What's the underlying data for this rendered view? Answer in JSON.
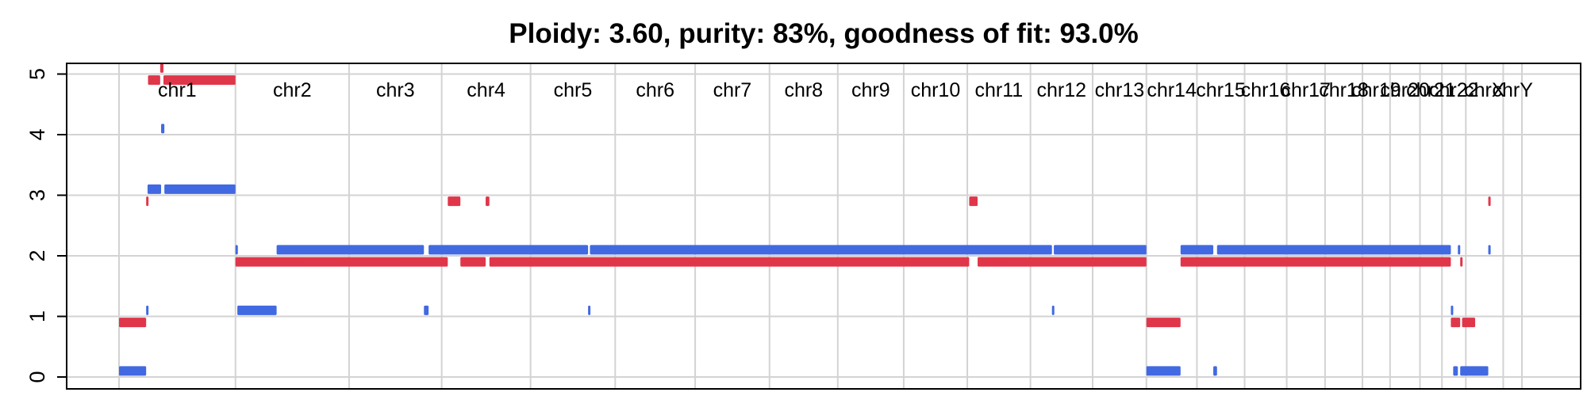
{
  "chart_data": {
    "type": "segment",
    "title": "Ploidy: 3.60, purity: 83%, goodness of fit: 93.0%",
    "xlabel": "",
    "ylabel": "",
    "ylim": [
      -0.2,
      5.1
    ],
    "yticks": [
      0,
      1,
      2,
      3,
      4,
      5
    ],
    "grid": true,
    "legend": "none",
    "colors": {
      "major": "#4169E1",
      "minor": "#E0364A"
    },
    "chromosomes": [
      {
        "name": "chr1",
        "start": 0,
        "end": 249
      },
      {
        "name": "chr2",
        "start": 249,
        "end": 492
      },
      {
        "name": "chr3",
        "start": 492,
        "end": 690
      },
      {
        "name": "chr4",
        "start": 690,
        "end": 880
      },
      {
        "name": "chr5",
        "start": 880,
        "end": 1061
      },
      {
        "name": "chr6",
        "start": 1061,
        "end": 1232
      },
      {
        "name": "chr7",
        "start": 1232,
        "end": 1391
      },
      {
        "name": "chr8",
        "start": 1391,
        "end": 1537
      },
      {
        "name": "chr9",
        "start": 1537,
        "end": 1678
      },
      {
        "name": "chr10",
        "start": 1678,
        "end": 1814
      },
      {
        "name": "chr11",
        "start": 1814,
        "end": 1949
      },
      {
        "name": "chr12",
        "start": 1949,
        "end": 2082
      },
      {
        "name": "chr13",
        "start": 2082,
        "end": 2197
      },
      {
        "name": "chr14",
        "start": 2197,
        "end": 2305
      },
      {
        "name": "chr15",
        "start": 2305,
        "end": 2407
      },
      {
        "name": "chr16",
        "start": 2407,
        "end": 2497
      },
      {
        "name": "chr17",
        "start": 2497,
        "end": 2579
      },
      {
        "name": "chr18",
        "start": 2579,
        "end": 2659
      },
      {
        "name": "chr19",
        "start": 2659,
        "end": 2718
      },
      {
        "name": "chr20",
        "start": 2718,
        "end": 2782
      },
      {
        "name": "chr21",
        "start": 2782,
        "end": 2829
      },
      {
        "name": "chr22",
        "start": 2829,
        "end": 2880
      },
      {
        "name": "chrX",
        "start": 2880,
        "end": 2960
      },
      {
        "name": "chrY",
        "start": 2960,
        "end": 3000
      }
    ],
    "series": [
      {
        "role": "major",
        "segments": [
          {
            "start": 0,
            "end": 58,
            "value": 0.1
          },
          {
            "start": 58,
            "end": 61,
            "value": 1.1
          },
          {
            "start": 61,
            "end": 90,
            "value": 3.1
          },
          {
            "start": 90,
            "end": 97,
            "value": 4.1
          },
          {
            "start": 97,
            "end": 249,
            "value": 3.1
          },
          {
            "start": 249,
            "end": 253,
            "value": 2.1
          },
          {
            "start": 253,
            "end": 337,
            "value": 1.1
          },
          {
            "start": 337,
            "end": 652,
            "value": 2.1
          },
          {
            "start": 652,
            "end": 662,
            "value": 1.1
          },
          {
            "start": 662,
            "end": 1003,
            "value": 2.1
          },
          {
            "start": 1003,
            "end": 1007,
            "value": 1.1
          },
          {
            "start": 1007,
            "end": 1995,
            "value": 2.1
          },
          {
            "start": 1995,
            "end": 1999,
            "value": 1.1
          },
          {
            "start": 1999,
            "end": 2197,
            "value": 2.1
          },
          {
            "start": 2197,
            "end": 2270,
            "value": 0.1
          },
          {
            "start": 2270,
            "end": 2340,
            "value": 2.1
          },
          {
            "start": 2340,
            "end": 2348,
            "value": 0.1
          },
          {
            "start": 2348,
            "end": 2848,
            "value": 2.1
          },
          {
            "start": 2848,
            "end": 2853,
            "value": 1.1
          },
          {
            "start": 2853,
            "end": 2863,
            "value": 0.1
          },
          {
            "start": 2863,
            "end": 2868,
            "value": 2.1
          },
          {
            "start": 2868,
            "end": 2928,
            "value": 0.1
          },
          {
            "start": 2928,
            "end": 2930,
            "value": 2.1
          }
        ]
      },
      {
        "role": "minor",
        "segments": [
          {
            "start": 0,
            "end": 58,
            "value": 0.9
          },
          {
            "start": 58,
            "end": 62,
            "value": 2.9
          },
          {
            "start": 62,
            "end": 88,
            "value": 4.9
          },
          {
            "start": 88,
            "end": 95,
            "value": 5.1
          },
          {
            "start": 95,
            "end": 249,
            "value": 4.9
          },
          {
            "start": 249,
            "end": 703,
            "value": 1.9
          },
          {
            "start": 703,
            "end": 730,
            "value": 2.9
          },
          {
            "start": 730,
            "end": 784,
            "value": 1.9
          },
          {
            "start": 784,
            "end": 792,
            "value": 2.9
          },
          {
            "start": 792,
            "end": 1818,
            "value": 1.9
          },
          {
            "start": 1818,
            "end": 1836,
            "value": 2.9
          },
          {
            "start": 1836,
            "end": 2197,
            "value": 1.9
          },
          {
            "start": 2197,
            "end": 2270,
            "value": 0.9
          },
          {
            "start": 2270,
            "end": 2848,
            "value": 1.9
          },
          {
            "start": 2848,
            "end": 2868,
            "value": 0.9
          },
          {
            "start": 2868,
            "end": 2872,
            "value": 1.9
          },
          {
            "start": 2872,
            "end": 2900,
            "value": 0.9
          },
          {
            "start": 2928,
            "end": 2931,
            "value": 2.9
          }
        ]
      }
    ]
  }
}
